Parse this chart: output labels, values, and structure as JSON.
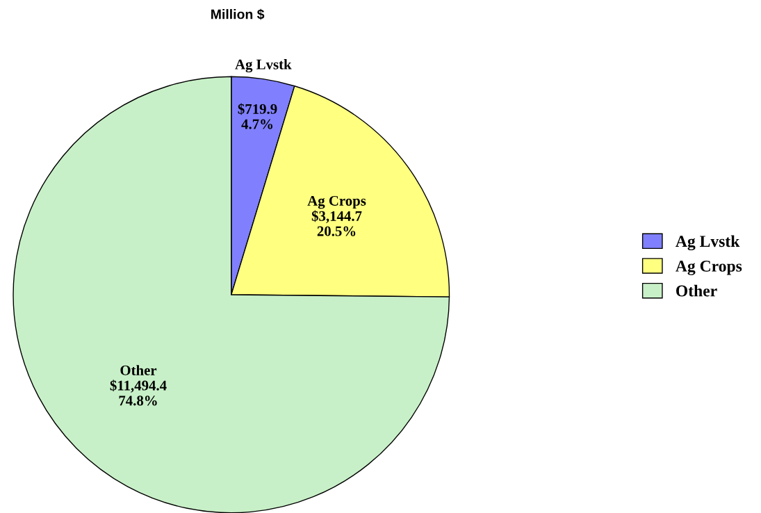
{
  "chart_data": {
    "type": "pie",
    "title": "Million $",
    "categories": [
      "Ag Lvstk",
      "Ag Crops",
      "Other"
    ],
    "values": [
      719.9,
      3144.7,
      11494.4
    ],
    "colors": [
      "#8080ff",
      "#ffff80",
      "#c8f0c8"
    ],
    "value_labels": [
      "$719.9\n4.7%",
      "$3,144.7\n20.5%",
      "$11,494.4\n74.8%"
    ],
    "legend": "right"
  }
}
